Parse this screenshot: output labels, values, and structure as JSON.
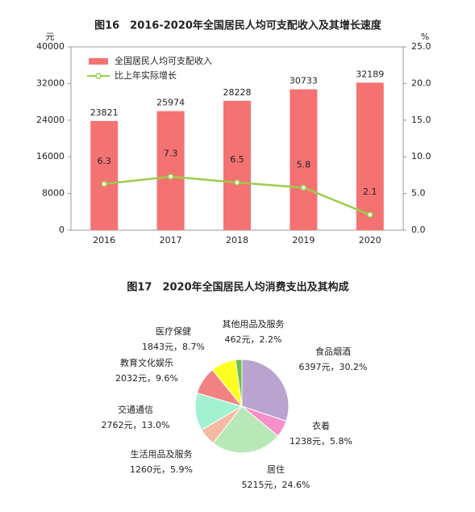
{
  "chart_data": [
    {
      "type": "bar-line",
      "title": "图16　2016-2020年全国居民人均可支配收入及其增长速度",
      "ylabel": "元",
      "y2label": "%",
      "categories": [
        "2016",
        "2017",
        "2018",
        "2019",
        "2020"
      ],
      "series": [
        {
          "name": "全国居民人均可支配收入",
          "color": "#f47272",
          "values": [
            23821,
            25974,
            28228,
            30733,
            32189
          ]
        },
        {
          "name": "比上年实际增长",
          "color": "#9ccc4c",
          "axis": "y2",
          "values": [
            6.3,
            7.3,
            6.5,
            5.8,
            2.1
          ]
        }
      ],
      "ylim": [
        0,
        40000
      ],
      "yticks": [
        0,
        8000,
        16000,
        24000,
        32000,
        40000
      ],
      "y2lim": [
        0,
        25
      ],
      "y2ticks": [
        {
          "value": 0,
          "label": "0.0"
        },
        {
          "value": 5,
          "label": "5.0"
        },
        {
          "value": 10,
          "label": "10.0"
        },
        {
          "value": 15,
          "label": "15.0"
        },
        {
          "value": 20,
          "label": "20.0"
        },
        {
          "value": 25,
          "label": "25.0"
        }
      ]
    },
    {
      "type": "pie",
      "title": "图17　2020年全国居民人均消费支出及其构成",
      "categories": [
        "食品烟酒",
        "衣着",
        "居住",
        "生活用品及服务",
        "交通通信",
        "教育文化娱乐",
        "医疗保健",
        "其他用品及服务"
      ],
      "values": [
        6397,
        1238,
        5215,
        1260,
        2762,
        2032,
        1843,
        462
      ],
      "value_labels": [
        "6397元，30.2%",
        "1238元，5.8%",
        "5215元，24.6%",
        "1260元，5.9%",
        "2762元，13.0%",
        "2032元，9.6%",
        "1843元，8.7%",
        "462元，2.2%"
      ],
      "colors": [
        "#b9a3cf",
        "#f78fc8",
        "#b8e8b8",
        "#f6b9a2",
        "#a2f2d2",
        "#f28282",
        "#ffff22",
        "#6cc04a"
      ]
    }
  ]
}
